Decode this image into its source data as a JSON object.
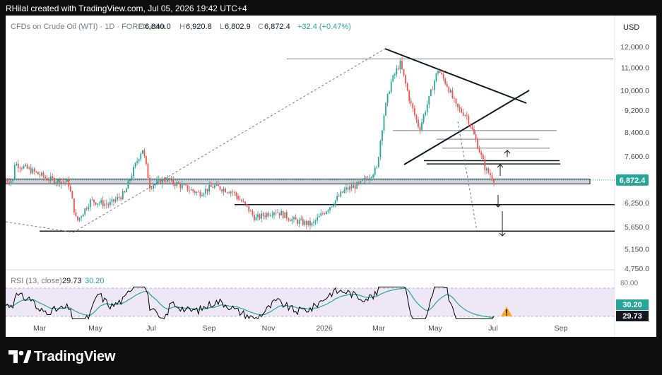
{
  "header": {
    "attribution": "RHilal created with TradingView.com, Jul 05, 2026 19:42 UTC+4"
  },
  "footer": {
    "brand": "TradingView"
  },
  "chart_data": {
    "type": "candlestick",
    "symbol": "CFDs on Crude Oil (WTI) · 1D · FOREX.com",
    "ohlc": {
      "open_label": "O",
      "open": "6,840.0",
      "high_label": "H",
      "high": "6,920.8",
      "low_label": "L",
      "low": "6,802.9",
      "close_label": "C",
      "close": "6,872.4",
      "change": "+32.4 (+0.47%)"
    },
    "currency": "USD",
    "last_price_label": "6,872.4",
    "price_axis": {
      "scale": "log",
      "ticks": [
        "12,000.0",
        "11,000.0",
        "10,000.0",
        "9,200.0",
        "8,400.0",
        "7,600.0",
        "6,250.0",
        "5,650.0",
        "5,150.0",
        "4,750.0"
      ],
      "tick_values": [
        12000,
        11000,
        10000,
        9200,
        8400,
        7600,
        6250,
        5650,
        5150,
        4750
      ]
    },
    "time_axis": {
      "ticks": [
        "Mar",
        "May",
        "Jul",
        "Sep",
        "Nov",
        "2026",
        "Mar",
        "May",
        "Jul",
        "Sep"
      ]
    },
    "price_path": [
      [
        "2025-02-01",
        7380
      ],
      [
        "2025-02-20",
        7150
      ],
      [
        "2025-03-10",
        6900
      ],
      [
        "2025-04-01",
        6800
      ],
      [
        "2025-04-10",
        5760
      ],
      [
        "2025-04-25",
        6300
      ],
      [
        "2025-05-15",
        6200
      ],
      [
        "2025-06-01",
        6500
      ],
      [
        "2025-06-20",
        7850
      ],
      [
        "2025-06-28",
        6700
      ],
      [
        "2025-07-15",
        6900
      ],
      [
        "2025-08-01",
        6700
      ],
      [
        "2025-08-20",
        6500
      ],
      [
        "2025-09-05",
        6700
      ],
      [
        "2025-09-25",
        6550
      ],
      [
        "2025-10-10",
        6150
      ],
      [
        "2025-10-20",
        5850
      ],
      [
        "2025-11-10",
        6050
      ],
      [
        "2025-12-01",
        5800
      ],
      [
        "2025-12-20",
        5700
      ],
      [
        "2026-01-10",
        6200
      ],
      [
        "2026-01-25",
        6600
      ],
      [
        "2026-02-10",
        6750
      ],
      [
        "2026-02-28",
        7200
      ],
      [
        "2026-03-08",
        9100
      ],
      [
        "2026-03-15",
        10300
      ],
      [
        "2026-03-25",
        11200
      ],
      [
        "2026-04-05",
        9500
      ],
      [
        "2026-04-15",
        8500
      ],
      [
        "2026-04-25",
        9600
      ],
      [
        "2026-05-05",
        10900
      ],
      [
        "2026-05-15",
        10200
      ],
      [
        "2026-05-25",
        9300
      ],
      [
        "2026-06-05",
        9000
      ],
      [
        "2026-06-15",
        8100
      ],
      [
        "2026-06-25",
        7200
      ],
      [
        "2026-07-05",
        6872.4
      ]
    ],
    "drawn_lines": {
      "horizontal_levels": [
        11400,
        8450,
        8150,
        7850,
        7450,
        7350,
        6200,
        5550
      ],
      "support_zone": [
        6760,
        6900
      ]
    },
    "rsi": {
      "label": "RSI (13, close)",
      "rsi_value": "29.73",
      "ma_value": "30.20",
      "levels": [
        "80.00"
      ],
      "color_rsi": "#000000",
      "color_ma": "#26a69a",
      "band_color": "#ede7f6"
    },
    "colors": {
      "up": "#26a69a",
      "down": "#ef5350",
      "last_price": "#26a69a"
    }
  }
}
